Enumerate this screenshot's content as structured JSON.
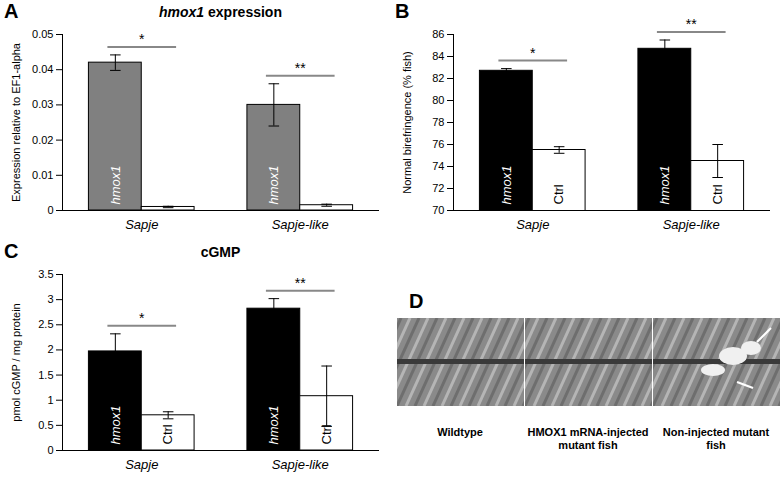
{
  "chart_data": [
    {
      "panel": "A",
      "type": "bar",
      "title": "hmox1 expression",
      "y_label": "Expression relative to EF1-alpha",
      "categories": [
        "Sapje",
        "Sapje-like"
      ],
      "series": [
        {
          "name": "hmox1",
          "color": "#808080",
          "values": [
            0.042,
            0.03
          ],
          "errors": [
            0.0022,
            0.006
          ]
        },
        {
          "color": "#ffffff",
          "values": [
            0.001,
            0.0015
          ],
          "errors": [
            0.0002,
            0.0003
          ]
        }
      ],
      "significance": [
        "*",
        "**"
      ],
      "ylim": [
        0,
        0.05
      ],
      "yticks": [
        0,
        0.01,
        0.02,
        0.03,
        0.04,
        0.05
      ]
    },
    {
      "panel": "B",
      "type": "bar",
      "y_label": "Normal birefringence (% fish)",
      "categories": [
        "Sapje",
        "Sapje-like"
      ],
      "series": [
        {
          "name": "hmox1",
          "color": "#000000",
          "values": [
            82.7,
            84.7
          ],
          "errors": [
            0.2,
            0.8
          ]
        },
        {
          "name": "Ctrl",
          "color": "#ffffff",
          "values": [
            75.5,
            74.5
          ],
          "errors": [
            0.3,
            1.5
          ]
        }
      ],
      "significance": [
        "*",
        "**"
      ],
      "ylim": [
        70,
        86
      ],
      "yticks": [
        70,
        72,
        74,
        76,
        78,
        80,
        82,
        84,
        86
      ]
    },
    {
      "panel": "C",
      "type": "bar",
      "title": "cGMP",
      "y_label": "pmol cGMP / mg protein",
      "categories": [
        "Sapje",
        "Sapje-like"
      ],
      "series": [
        {
          "name": "hmox1",
          "color": "#000000",
          "values": [
            1.97,
            2.82
          ],
          "errors": [
            0.35,
            0.2
          ]
        },
        {
          "name": "Ctrl",
          "color": "#ffffff",
          "values": [
            0.7,
            1.08
          ],
          "errors": [
            0.07,
            0.6
          ]
        }
      ],
      "significance": [
        "*",
        "**"
      ],
      "ylim": [
        0,
        3.5
      ],
      "yticks": [
        0,
        0.5,
        1,
        1.5,
        2,
        2.5,
        3,
        3.5
      ]
    }
  ],
  "image_panel": {
    "panel": "D",
    "images": [
      {
        "label": "Wildtype"
      },
      {
        "label": "HMOX1 mRNA-injected mutant fish"
      },
      {
        "label": "Non-injected mutant fish"
      }
    ]
  }
}
